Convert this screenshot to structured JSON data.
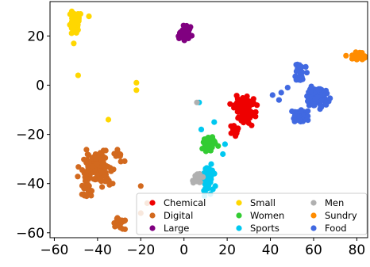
{
  "chart_data": {
    "type": "scatter",
    "title": "",
    "xlabel": "",
    "ylabel": "",
    "xlim": [
      -62,
      85
    ],
    "ylim": [
      -62,
      34
    ],
    "x_ticks": [
      -60,
      -40,
      -20,
      0,
      20,
      40,
      60,
      80
    ],
    "y_ticks": [
      -60,
      -40,
      -20,
      0,
      20
    ],
    "x_tick_labels": [
      "−60",
      "−40",
      "−20",
      "0",
      "20",
      "40",
      "60",
      "80"
    ],
    "y_tick_labels": [
      "−60",
      "−40",
      "−20",
      "0",
      "20"
    ],
    "grid": false,
    "legend_position": "bottom-right",
    "series": [
      {
        "name": "Chemical",
        "color": "#ee0000",
        "clusters": [
          {
            "cx": 28,
            "cy": -10,
            "rx": 5,
            "ry": 5,
            "n": 90
          },
          {
            "cx": 24,
            "cy": -18,
            "rx": 2,
            "ry": 3,
            "n": 15
          }
        ]
      },
      {
        "name": "Digital",
        "color": "#d2691e",
        "clusters": [
          {
            "cx": -40,
            "cy": -34,
            "rx": 7,
            "ry": 6,
            "n": 110
          },
          {
            "cx": -45,
            "cy": -42,
            "rx": 3,
            "ry": 4,
            "n": 20
          },
          {
            "cx": -30,
            "cy": -28,
            "rx": 3,
            "ry": 4,
            "n": 10
          },
          {
            "cx": -30,
            "cy": -56,
            "rx": 2.5,
            "ry": 2.5,
            "n": 25
          }
        ],
        "points": [
          [
            -33,
            -40
          ],
          [
            -20,
            -41
          ],
          [
            -17,
            -48
          ],
          [
            -20,
            -52
          ]
        ]
      },
      {
        "name": "Large",
        "color": "#800080",
        "clusters": [
          {
            "cx": 0,
            "cy": 21,
            "rx": 4,
            "ry": 3,
            "n": 25
          }
        ]
      },
      {
        "name": "Small",
        "color": "#ffd700",
        "clusters": [
          {
            "cx": -51,
            "cy": 25,
            "rx": 2.5,
            "ry": 5,
            "n": 55
          }
        ],
        "points": [
          [
            -44,
            28
          ],
          [
            -51,
            17
          ],
          [
            -49,
            4
          ],
          [
            -35,
            -14
          ],
          [
            -22,
            1
          ],
          [
            -22,
            -2
          ]
        ]
      },
      {
        "name": "Women",
        "color": "#33cc33",
        "clusters": [
          {
            "cx": 12,
            "cy": -24,
            "rx": 3,
            "ry": 3,
            "n": 50
          }
        ]
      },
      {
        "name": "Sports",
        "color": "#00c8f0",
        "clusters": [
          {
            "cx": 11,
            "cy": -38,
            "rx": 3,
            "ry": 6,
            "n": 45
          }
        ],
        "points": [
          [
            8,
            -18
          ],
          [
            14,
            -15
          ],
          [
            7,
            -7
          ],
          [
            18,
            -28
          ],
          [
            19,
            -24
          ],
          [
            10,
            -34
          ]
        ]
      },
      {
        "name": "Men",
        "color": "#b0b0b0",
        "clusters": [
          {
            "cx": 6,
            "cy": -38,
            "rx": 2.5,
            "ry": 3,
            "n": 20
          }
        ],
        "points": [
          [
            6,
            -7
          ]
        ]
      },
      {
        "name": "Sundry",
        "color": "#ff8c00",
        "clusters": [
          {
            "cx": 81,
            "cy": 12,
            "rx": 2.5,
            "ry": 1.8,
            "n": 30
          }
        ],
        "points": [
          [
            75,
            12
          ]
        ]
      },
      {
        "name": "Food",
        "color": "#4169e1",
        "clusters": [
          {
            "cx": 62,
            "cy": -5,
            "rx": 5,
            "ry": 5,
            "n": 80
          },
          {
            "cx": 54,
            "cy": -13,
            "rx": 4,
            "ry": 3,
            "n": 40
          },
          {
            "cx": 54,
            "cy": 5,
            "rx": 3,
            "ry": 4,
            "n": 25
          }
        ],
        "points": [
          [
            45,
            -3
          ],
          [
            44,
            -6
          ],
          [
            48,
            -1
          ],
          [
            41,
            -4
          ]
        ]
      }
    ],
    "legend": {
      "columns": [
        [
          "Chemical",
          "Digital",
          "Large"
        ],
        [
          "Small",
          "Women",
          "Sports"
        ],
        [
          "Men",
          "Sundry",
          "Food"
        ]
      ]
    }
  }
}
